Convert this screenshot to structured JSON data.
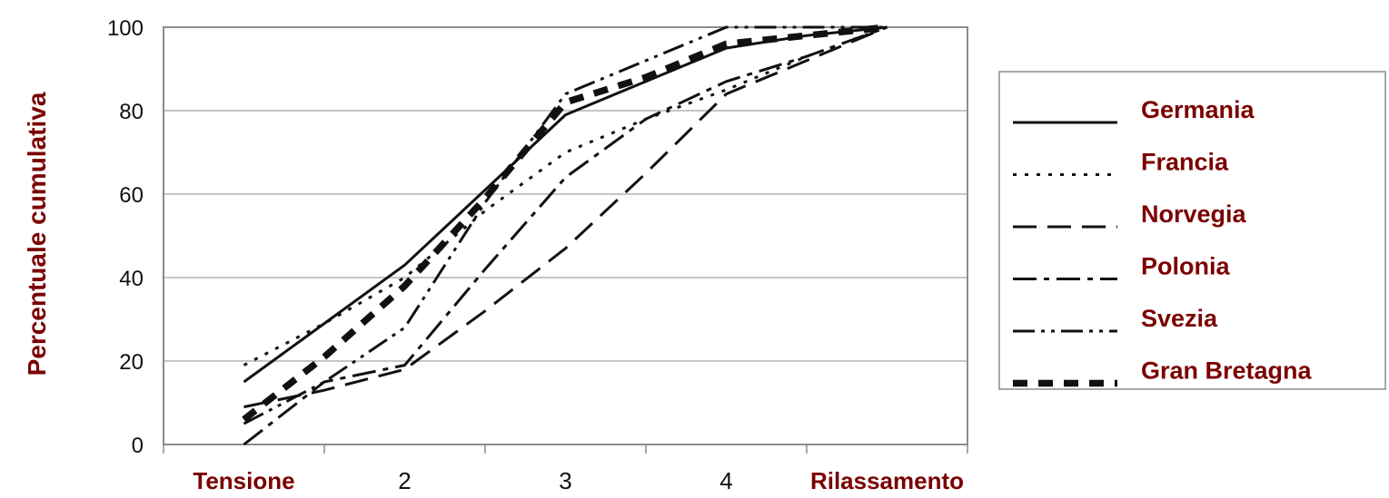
{
  "chart_data": {
    "type": "line",
    "ylabel": "Percentuale cumulativa",
    "xlabel": "",
    "x_ticks": [
      "Tensione",
      "2",
      "3",
      "4",
      "Rilassamento"
    ],
    "y_ticks": [
      "0",
      "20",
      "40",
      "60",
      "80",
      "100"
    ],
    "ylim": [
      0,
      100
    ],
    "grid": "horizontal",
    "legend_position": "right",
    "series": [
      {
        "name": "Germania",
        "style": "solid",
        "points": [
          [
            0.5,
            15
          ],
          [
            1,
            29
          ],
          [
            1.5,
            43
          ],
          [
            2,
            61
          ],
          [
            2.5,
            79
          ],
          [
            3,
            87
          ],
          [
            3.5,
            95
          ],
          [
            4,
            98
          ],
          [
            4.5,
            100
          ]
        ]
      },
      {
        "name": "Francia",
        "style": "dotted",
        "points": [
          [
            0.5,
            19
          ],
          [
            1,
            29
          ],
          [
            1.5,
            40
          ],
          [
            2,
            56
          ],
          [
            2.5,
            70
          ],
          [
            3,
            78
          ],
          [
            3.5,
            85
          ],
          [
            4,
            93
          ],
          [
            4.5,
            100
          ]
        ]
      },
      {
        "name": "Norvegia",
        "style": "dashed",
        "points": [
          [
            0.5,
            9
          ],
          [
            1,
            13
          ],
          [
            1.5,
            18
          ],
          [
            2,
            32
          ],
          [
            2.5,
            47
          ],
          [
            3,
            65
          ],
          [
            3.5,
            84
          ],
          [
            4,
            92
          ],
          [
            4.5,
            100
          ]
        ]
      },
      {
        "name": "Polonia",
        "style": "dashdot",
        "points": [
          [
            0.5,
            0
          ],
          [
            1,
            15
          ],
          [
            1.5,
            19
          ],
          [
            2,
            42
          ],
          [
            2.5,
            64
          ],
          [
            3,
            78
          ],
          [
            3.5,
            87
          ],
          [
            4,
            93
          ],
          [
            4.5,
            100
          ]
        ]
      },
      {
        "name": "Svezia",
        "style": "dashdotdot",
        "points": [
          [
            0.5,
            5
          ],
          [
            1,
            15
          ],
          [
            1.5,
            28
          ],
          [
            2,
            58
          ],
          [
            2.5,
            84
          ],
          [
            3,
            92
          ],
          [
            3.5,
            100
          ],
          [
            4,
            100
          ],
          [
            4.5,
            100
          ]
        ]
      },
      {
        "name": "Gran Bretagna",
        "style": "thick-dashed",
        "points": [
          [
            0.5,
            6
          ],
          [
            1,
            21
          ],
          [
            1.5,
            38
          ],
          [
            2,
            59
          ],
          [
            2.5,
            82
          ],
          [
            3,
            88
          ],
          [
            3.5,
            96
          ],
          [
            4,
            98
          ],
          [
            4.5,
            100
          ]
        ]
      }
    ],
    "colors": {
      "lines": "#111111",
      "label_text": "#7b0000",
      "grid": "#b4b4b4",
      "axis": "#8c8c8c"
    }
  }
}
